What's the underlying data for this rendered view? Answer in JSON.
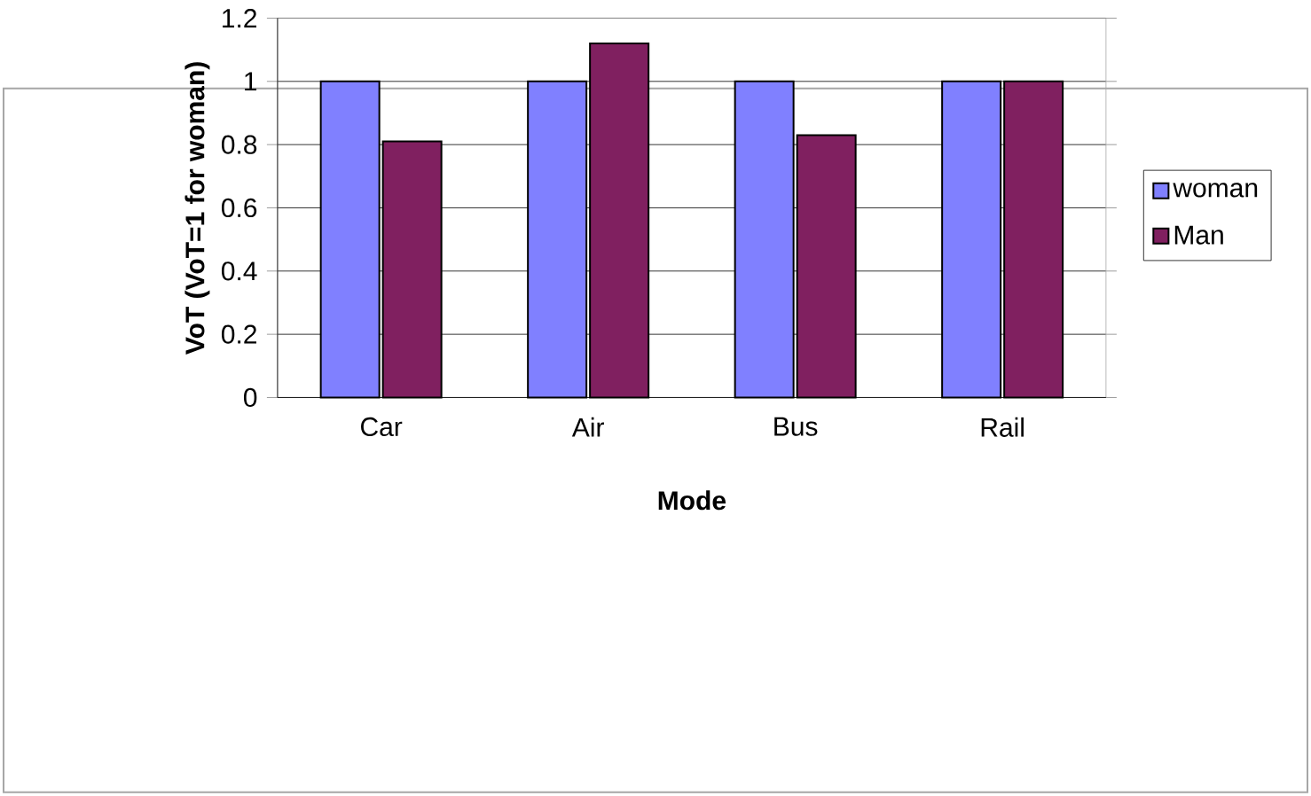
{
  "chart_data": {
    "type": "bar",
    "xlabel": "Mode",
    "ylabel": "VoT (VoT=1 for woman)",
    "categories": [
      "Car",
      "Air",
      "Bus",
      "Rail"
    ],
    "series": [
      {
        "name": "woman",
        "color": "#8080ff",
        "values": [
          1,
          1,
          1,
          1
        ]
      },
      {
        "name": "Man",
        "color": "#802060",
        "values": [
          0.81,
          1.12,
          0.83,
          1
        ]
      }
    ],
    "ylim": [
      0,
      1.2
    ],
    "yticks": [
      0,
      0.2,
      0.4,
      0.6,
      0.8,
      1,
      1.2
    ],
    "grid": "y",
    "legend": "right"
  }
}
